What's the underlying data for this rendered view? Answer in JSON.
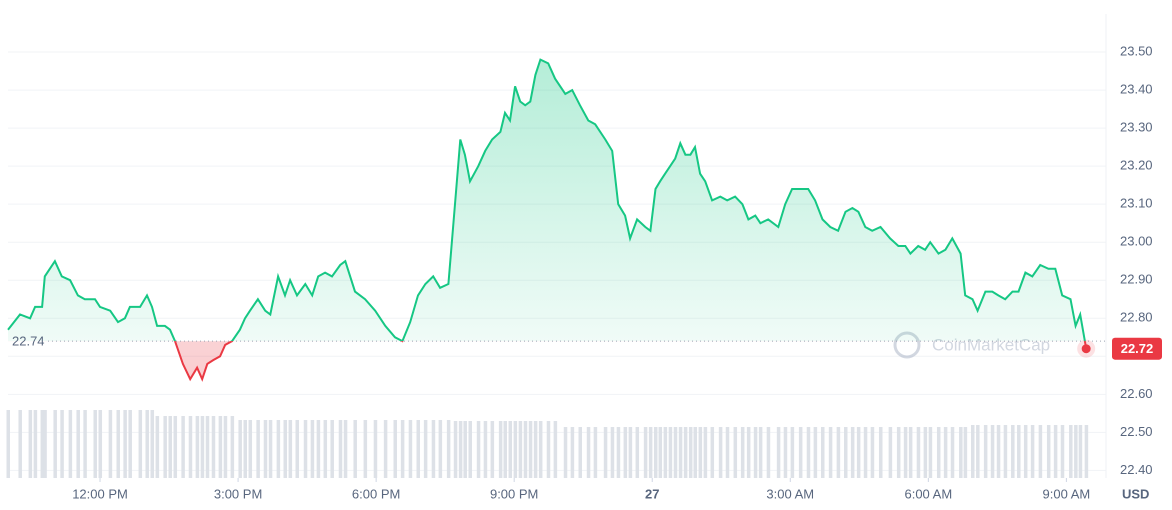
{
  "chart_data": {
    "type": "line",
    "x": [
      10.0,
      10.26,
      10.48,
      10.59,
      10.74,
      10.8,
      11.02,
      11.17,
      11.35,
      11.52,
      11.67,
      11.89,
      12.0,
      12.22,
      12.39,
      12.54,
      12.65,
      12.87,
      13.02,
      13.13,
      13.24,
      13.41,
      13.52,
      13.63,
      13.8,
      13.96,
      14.11,
      14.22,
      14.33,
      14.46,
      14.61,
      14.72,
      14.87,
      15.04,
      15.15,
      15.26,
      15.43,
      15.59,
      15.7,
      15.87,
      16.02,
      16.13,
      16.28,
      16.46,
      16.61,
      16.74,
      16.89,
      17.04,
      17.22,
      17.33,
      17.54,
      17.76,
      17.98,
      18.2,
      18.41,
      18.57,
      18.74,
      18.91,
      19.07,
      19.24,
      19.39,
      19.57,
      19.72,
      19.83,
      19.93,
      20.04,
      20.22,
      20.37,
      20.52,
      20.7,
      20.8,
      20.91,
      21.02,
      21.13,
      21.24,
      21.35,
      21.46,
      21.57,
      21.74,
      21.89,
      22.11,
      22.26,
      22.43,
      22.61,
      22.76,
      22.98,
      23.13,
      23.26,
      23.41,
      23.52,
      23.67,
      23.85,
      23.96,
      24.07,
      24.17,
      24.28,
      24.39,
      24.5,
      24.61,
      24.72,
      24.83,
      24.93,
      25.04,
      25.15,
      25.3,
      25.48,
      25.63,
      25.8,
      25.96,
      26.09,
      26.24,
      26.35,
      26.52,
      26.74,
      26.89,
      27.04,
      27.22,
      27.39,
      27.54,
      27.7,
      27.87,
      28.04,
      28.2,
      28.35,
      28.48,
      28.63,
      28.78,
      28.96,
      29.17,
      29.35,
      29.5,
      29.61,
      29.78,
      29.93,
      30.04,
      30.22,
      30.37,
      30.52,
      30.7,
      30.8,
      30.96,
      31.07,
      31.24,
      31.39,
      31.52,
      31.67,
      31.83,
      31.96,
      32.11,
      32.26,
      32.43,
      32.61,
      32.76,
      32.91,
      33.09,
      33.2,
      33.3,
      33.43
    ],
    "values": [
      22.77,
      22.81,
      22.8,
      22.83,
      22.83,
      22.91,
      22.95,
      22.91,
      22.9,
      22.86,
      22.85,
      22.85,
      22.83,
      22.82,
      22.79,
      22.8,
      22.83,
      22.83,
      22.86,
      22.83,
      22.78,
      22.78,
      22.77,
      22.74,
      22.68,
      22.64,
      22.67,
      22.64,
      22.68,
      22.69,
      22.7,
      22.73,
      22.74,
      22.77,
      22.8,
      22.82,
      22.85,
      22.82,
      22.81,
      22.91,
      22.86,
      22.9,
      22.86,
      22.89,
      22.86,
      22.91,
      22.92,
      22.91,
      22.94,
      22.95,
      22.87,
      22.85,
      22.82,
      22.78,
      22.75,
      22.74,
      22.79,
      22.86,
      22.89,
      22.91,
      22.88,
      22.89,
      23.11,
      23.27,
      23.23,
      23.16,
      23.2,
      23.24,
      23.27,
      23.29,
      23.34,
      23.32,
      23.41,
      23.37,
      23.36,
      23.37,
      23.44,
      23.48,
      23.47,
      23.43,
      23.39,
      23.4,
      23.36,
      23.32,
      23.31,
      23.27,
      23.24,
      23.1,
      23.07,
      23.01,
      23.06,
      23.04,
      23.03,
      23.14,
      23.16,
      23.18,
      23.2,
      23.22,
      23.26,
      23.23,
      23.23,
      23.25,
      23.18,
      23.16,
      23.11,
      23.12,
      23.11,
      23.12,
      23.1,
      23.06,
      23.07,
      23.05,
      23.06,
      23.04,
      23.1,
      23.14,
      23.14,
      23.14,
      23.11,
      23.06,
      23.04,
      23.03,
      23.08,
      23.09,
      23.08,
      23.04,
      23.03,
      23.04,
      23.01,
      22.99,
      22.99,
      22.97,
      22.99,
      22.98,
      23.0,
      22.97,
      22.98,
      23.01,
      22.97,
      22.86,
      22.85,
      22.82,
      22.87,
      22.87,
      22.86,
      22.85,
      22.87,
      22.87,
      22.92,
      22.91,
      22.94,
      22.93,
      22.93,
      22.86,
      22.85,
      22.78,
      22.81,
      22.72
    ],
    "volume": [
      68,
      68,
      68,
      68,
      68,
      68,
      68,
      68,
      68,
      68,
      68,
      68,
      68,
      68,
      68,
      68,
      68,
      68,
      68,
      68,
      62,
      62,
      62,
      62,
      62,
      62,
      62,
      62,
      62,
      62,
      62,
      62,
      62,
      58,
      58,
      58,
      58,
      58,
      58,
      58,
      58,
      58,
      58,
      58,
      58,
      58,
      58,
      58,
      58,
      58,
      58,
      58,
      58,
      58,
      58,
      58,
      58,
      58,
      58,
      58,
      58,
      58,
      57,
      57,
      57,
      57,
      57,
      57,
      57,
      57,
      57,
      57,
      57,
      57,
      57,
      57,
      57,
      57,
      57,
      57,
      51,
      51,
      51,
      51,
      51,
      51,
      51,
      51,
      51,
      51,
      51,
      51,
      51,
      51,
      51,
      51,
      51,
      51,
      51,
      51,
      51,
      51,
      51,
      51,
      51,
      51,
      51,
      51,
      51,
      51,
      51,
      51,
      51,
      51,
      51,
      51,
      51,
      51,
      51,
      51,
      51,
      51,
      51,
      51,
      51,
      51,
      51,
      51,
      51,
      51,
      51,
      51,
      51,
      51,
      51,
      51,
      51,
      51,
      51,
      51,
      53,
      53,
      53,
      53,
      53,
      53,
      53,
      53,
      53,
      53,
      53,
      53,
      53,
      53,
      53,
      53,
      53,
      53
    ],
    "color": "#16c784",
    "down_color": "#ea3943",
    "volume_color": "#dde1e7",
    "reference": 22.74,
    "xlim": [
      10,
      33.6
    ],
    "xticks": [
      {
        "value": 12,
        "label": "12:00 PM"
      },
      {
        "value": 15,
        "label": "3:00 PM"
      },
      {
        "value": 18,
        "label": "6:00 PM"
      },
      {
        "value": 21,
        "label": "9:00 PM"
      },
      {
        "value": 24,
        "label": "27"
      },
      {
        "value": 27,
        "label": "3:00 AM"
      },
      {
        "value": 30,
        "label": "6:00 AM"
      },
      {
        "value": 33,
        "label": "9:00 AM"
      }
    ],
    "ylim": [
      22.38,
      23.6
    ],
    "yticks": [
      {
        "value": 22.4,
        "label": "22.40"
      },
      {
        "value": 22.5,
        "label": "22.50"
      },
      {
        "value": 22.6,
        "label": "22.60"
      },
      {
        "value": 22.7,
        "label": "22.70"
      },
      {
        "value": 22.8,
        "label": "22.80"
      },
      {
        "value": 22.9,
        "label": "22.90"
      },
      {
        "value": 23.0,
        "label": "23.00"
      },
      {
        "value": 23.1,
        "label": "23.10"
      },
      {
        "value": 23.2,
        "label": "23.20"
      },
      {
        "value": 23.3,
        "label": "23.30"
      },
      {
        "value": 23.4,
        "label": "23.40"
      },
      {
        "value": 23.5,
        "label": "23.50"
      }
    ],
    "y_axis_label": "USD",
    "watermark": "CoinMarketCap",
    "grid": true
  }
}
